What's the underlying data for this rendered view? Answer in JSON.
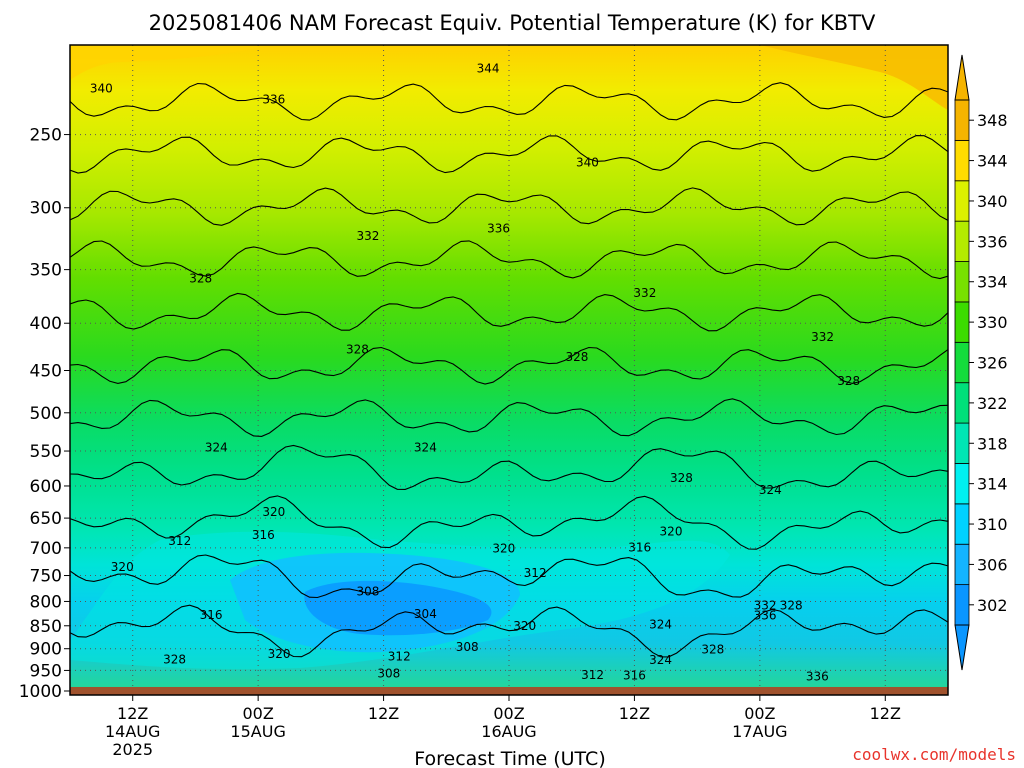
{
  "chart_data": {
    "type": "heatmap",
    "title": "2025081406 NAM Forecast Equiv. Potential Temperature (K) for KBTV",
    "xlabel": "Forecast Time (UTC)",
    "ylabel": "",
    "y_scale": "log",
    "y_reversed": true,
    "ylim": [
      1010,
      200
    ],
    "y_ticks": [
      250,
      300,
      350,
      400,
      450,
      500,
      550,
      600,
      650,
      700,
      750,
      800,
      850,
      900,
      950,
      1000
    ],
    "x_ticks": [
      {
        "hour": 6,
        "label": [
          "12Z",
          "14AUG",
          "2025"
        ]
      },
      {
        "hour": 18,
        "label": [
          "00Z",
          "15AUG"
        ]
      },
      {
        "hour": 30,
        "label": [
          "12Z"
        ]
      },
      {
        "hour": 42,
        "label": [
          "00Z",
          "16AUG"
        ]
      },
      {
        "hour": 54,
        "label": [
          "12Z"
        ]
      },
      {
        "hour": 66,
        "label": [
          "00Z",
          "17AUG"
        ]
      },
      {
        "hour": 78,
        "label": [
          "12Z"
        ]
      }
    ],
    "xlim": [
      0,
      84
    ],
    "grid": true,
    "units": "K",
    "colorbar": {
      "levels": [
        302,
        306,
        310,
        314,
        318,
        322,
        326,
        330,
        334,
        336,
        340,
        344,
        348
      ],
      "labels": [
        "302",
        "306",
        "310",
        "314",
        "318",
        "322",
        "326",
        "330",
        "334",
        "336",
        "340",
        "344",
        "348"
      ],
      "colors": [
        "#0a96ff",
        "#14b4ff",
        "#00d2ff",
        "#00f0f0",
        "#00e6b4",
        "#00e07a",
        "#14dc3c",
        "#3cdc00",
        "#78e100",
        "#b4eb00",
        "#dcf000",
        "#ffdc00",
        "#f5b400"
      ]
    },
    "contour_levels": [
      304,
      308,
      312,
      316,
      320,
      324,
      328,
      332,
      336,
      340,
      344
    ],
    "contour_labels": [
      {
        "text": "344",
        "hour": 40,
        "p": 212
      },
      {
        "text": "340",
        "hour": 3,
        "p": 223
      },
      {
        "text": "336",
        "hour": 19.5,
        "p": 229
      },
      {
        "text": "340",
        "hour": 49.5,
        "p": 268
      },
      {
        "text": "332",
        "hour": 28.5,
        "p": 322
      },
      {
        "text": "336",
        "hour": 41,
        "p": 316
      },
      {
        "text": "328",
        "hour": 12.5,
        "p": 358
      },
      {
        "text": "332",
        "hour": 55,
        "p": 371
      },
      {
        "text": "332",
        "hour": 72,
        "p": 414
      },
      {
        "text": "328",
        "hour": 27.5,
        "p": 427
      },
      {
        "text": "328",
        "hour": 48.5,
        "p": 435
      },
      {
        "text": "328",
        "hour": 74.5,
        "p": 462
      },
      {
        "text": "324",
        "hour": 14,
        "p": 545
      },
      {
        "text": "324",
        "hour": 34,
        "p": 545
      },
      {
        "text": "328",
        "hour": 58.5,
        "p": 588
      },
      {
        "text": "324",
        "hour": 67,
        "p": 606
      },
      {
        "text": "320",
        "hour": 19.5,
        "p": 640
      },
      {
        "text": "316",
        "hour": 18.5,
        "p": 678
      },
      {
        "text": "312",
        "hour": 10.5,
        "p": 688
      },
      {
        "text": "320",
        "hour": 57.5,
        "p": 672
      },
      {
        "text": "316",
        "hour": 54.5,
        "p": 699
      },
      {
        "text": "320",
        "hour": 41.5,
        "p": 701
      },
      {
        "text": "320",
        "hour": 5,
        "p": 734
      },
      {
        "text": "312",
        "hour": 44.5,
        "p": 745
      },
      {
        "text": "308",
        "hour": 28.5,
        "p": 780
      },
      {
        "text": "304",
        "hour": 34,
        "p": 825
      },
      {
        "text": "332",
        "hour": 66.5,
        "p": 808
      },
      {
        "text": "328",
        "hour": 69,
        "p": 808
      },
      {
        "text": "336",
        "hour": 66.5,
        "p": 829
      },
      {
        "text": "316",
        "hour": 13.5,
        "p": 827
      },
      {
        "text": "320",
        "hour": 43.5,
        "p": 850
      },
      {
        "text": "324",
        "hour": 56.5,
        "p": 847
      },
      {
        "text": "320",
        "hour": 20,
        "p": 912
      },
      {
        "text": "312",
        "hour": 31.5,
        "p": 918
      },
      {
        "text": "308",
        "hour": 38,
        "p": 896
      },
      {
        "text": "328",
        "hour": 61.5,
        "p": 902
      },
      {
        "text": "324",
        "hour": 56.5,
        "p": 926
      },
      {
        "text": "328",
        "hour": 10,
        "p": 925
      },
      {
        "text": "308",
        "hour": 30.5,
        "p": 957
      },
      {
        "text": "312",
        "hour": 50,
        "p": 961
      },
      {
        "text": "316",
        "hour": 54,
        "p": 962
      },
      {
        "text": "336",
        "hour": 71.5,
        "p": 965
      }
    ],
    "ground": {
      "color": "#a0522d",
      "p_top": 990
    }
  },
  "footer": {
    "credit": "coolwx.com/models"
  }
}
